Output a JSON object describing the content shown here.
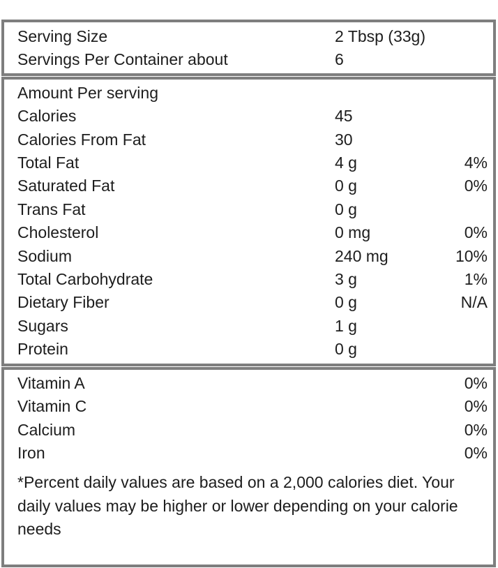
{
  "label": {
    "colors": {
      "border": "#7e7e7e",
      "text": "#1d1d1d",
      "background": "#ffffff"
    },
    "serving_section": {
      "rows": [
        {
          "name": "Serving Size",
          "value": "2 Tbsp (33g)",
          "percent": ""
        },
        {
          "name": "Servings Per Container about",
          "value": "6",
          "percent": ""
        }
      ]
    },
    "nutrition_section": {
      "header": "Amount Per serving",
      "rows": [
        {
          "name": "Calories",
          "value": "45",
          "percent": ""
        },
        {
          "name": "Calories From Fat",
          "value": "30",
          "percent": ""
        },
        {
          "name": "Total Fat",
          "value": "4 g",
          "percent": "4%"
        },
        {
          "name": "Saturated Fat",
          "value": "0 g",
          "percent": "0%"
        },
        {
          "name": "Trans Fat",
          "value": "0 g",
          "percent": ""
        },
        {
          "name": "Cholesterol",
          "value": "0 mg",
          "percent": "0%"
        },
        {
          "name": "Sodium",
          "value": "240 mg",
          "percent": "10%"
        },
        {
          "name": "Total Carbohydrate",
          "value": "3 g",
          "percent": "1%"
        },
        {
          "name": "Dietary Fiber",
          "value": "0 g",
          "percent": "N/A"
        },
        {
          "name": "Sugars",
          "value": "1 g",
          "percent": ""
        },
        {
          "name": "Protein",
          "value": "0 g",
          "percent": ""
        }
      ]
    },
    "vitamin_section": {
      "rows": [
        {
          "name": "Vitamin A",
          "percent": "0%"
        },
        {
          "name": "Vitamin C",
          "percent": "0%"
        },
        {
          "name": "Calcium",
          "percent": "0%"
        },
        {
          "name": "Iron",
          "percent": "0%"
        }
      ],
      "footnote": "*Percent daily values are based on a 2,000 calories diet. Your daily values may be higher or lower depending on your calorie needs"
    }
  }
}
